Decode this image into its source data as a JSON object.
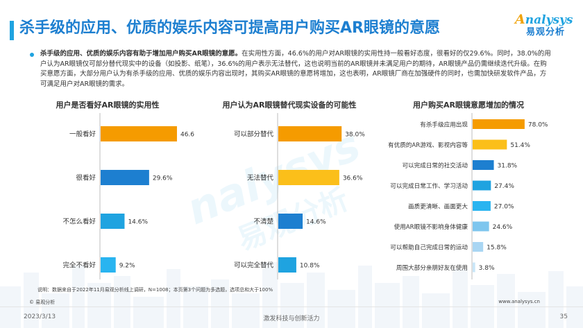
{
  "header": {
    "title": "杀手级的应用、优质的娱乐内容可提高用户购买AR眼镜的意愿",
    "logo_brand": "nalysys",
    "logo_brand_initial": "A",
    "logo_cn": "易观分析"
  },
  "summary": {
    "lead": "杀手级的应用、优质的娱乐内容有助于增加用户购买AR眼镜的意愿。",
    "body": "在实用性方面，46.6%的用户对AR眼镜的实用性持一般看好态度，很看好的仅29.6%。同时，38.0%的用户认为AR眼镜仅可部分替代现实中的设备（如投影、纸笔），36.6%的用户表示无法替代，这也说明当前的AR眼镜并未满足用户的期待，AR眼镜产品仍需继续迭代升级。在购买意愿方面，大部分用户认为有杀手级的应用、优质的娱乐内容出现时，其购买AR眼镜的意愿将增加，这也表明，AR眼镜厂商在加强硬件的同时，也需加快研发软件产品，方可满足用户对AR眼镜的需求。"
  },
  "colors": {
    "orange": "#f59b00",
    "yellow": "#fbbf1a",
    "blue_dark": "#1d7fd0",
    "blue_mid": "#1fa3e0",
    "blue_light": "#7ec6ee",
    "blue_pale": "#b9def5",
    "accent": "#1d7fd0"
  },
  "chart_data": [
    {
      "type": "bar",
      "orientation": "horizontal",
      "title": "用户是否看好AR眼镜的实用性",
      "categories": [
        "一般看好",
        "很看好",
        "不怎么看好",
        "完全不看好"
      ],
      "values": [
        46.6,
        29.6,
        14.6,
        9.2
      ],
      "labels": [
        "46.6%",
        "29.6%",
        "14.6%",
        "9.2%"
      ],
      "colors": [
        "#f59b00",
        "#1d7fd0",
        "#1fa3e0",
        "#29b4f0"
      ],
      "xlim": [
        0,
        50
      ]
    },
    {
      "type": "bar",
      "orientation": "horizontal",
      "title": "用户认为AR眼镜替代现实设备的可能性",
      "categories": [
        "可以部分替代",
        "无法替代",
        "不清楚",
        "可以完全替代"
      ],
      "values": [
        38.0,
        36.6,
        14.6,
        10.8
      ],
      "labels": [
        "38.0%",
        "36.6%",
        "14.6%",
        "10.8%"
      ],
      "colors": [
        "#f59b00",
        "#fbbf1a",
        "#1d7fd0",
        "#1fa3e0"
      ],
      "xlim": [
        0,
        50
      ]
    },
    {
      "type": "bar",
      "orientation": "horizontal",
      "title": "用户购买AR眼镜意愿增加的情况",
      "categories": [
        "有杀手级应用出现",
        "有优质的AR游戏、影视内容等",
        "可以完成日常的社交活动",
        "可以完成日常工作、学习活动",
        "画质更清晰、画面更大",
        "使用AR眼镜不影响身体健康",
        "可以帮助自己完成日常的运动",
        "周围大部分亲朋好友在使用"
      ],
      "values": [
        78.0,
        51.4,
        31.8,
        27.4,
        27.0,
        24.6,
        15.8,
        3.8
      ],
      "labels": [
        "78.0%",
        "51.4%",
        "31.8%",
        "27.4%",
        "27.0%",
        "24.6%",
        "15.8%",
        "3.8%"
      ],
      "colors": [
        "#f59b00",
        "#fbbf1a",
        "#1d7fd0",
        "#1fa3e0",
        "#29b4f0",
        "#7ec6ee",
        "#a9d6f3",
        "#c9e6f8"
      ],
      "xlim": [
        0,
        100
      ]
    }
  ],
  "footer": {
    "note": "说明：数据来自于2022年11月易观分析线上调研，N=1008；本页第3个问题为多选题，选项总和大于100%",
    "copyright": "© 易观分析",
    "url": "www.analysys.cn",
    "date": "2023/3/13",
    "slogan": "激发科技与创新活力",
    "page": "35"
  }
}
